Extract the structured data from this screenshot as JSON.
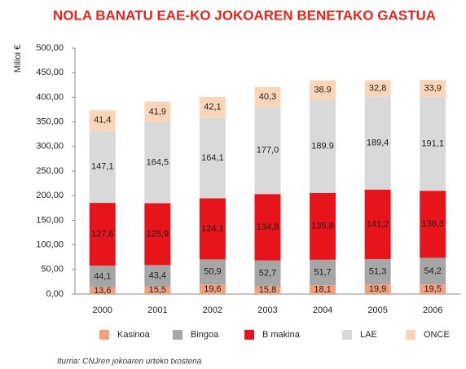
{
  "chart_data": {
    "type": "stacked_bar",
    "title": "NOLA BANATU EAE-KO JOKOAREN BENETAKO GASTUA",
    "y_label": "Milioi €",
    "source": "Iturria: CNJren jokoaren urteko txostena",
    "categories": [
      "2000",
      "2001",
      "2002",
      "2003",
      "2004",
      "2005",
      "2006"
    ],
    "series": [
      {
        "name": "Kasinoa",
        "color": "#f2a07e",
        "values": [
          13.6,
          15.5,
          19.6,
          15.8,
          18.1,
          19.9,
          19.5
        ],
        "value_labels": [
          "13,6",
          "15,5",
          "19,6",
          "15,8",
          "18,1",
          "19,9",
          "19,5"
        ]
      },
      {
        "name": "Bingoa",
        "color": "#a6a6a6",
        "values": [
          44.1,
          43.4,
          50.9,
          52.7,
          51.7,
          51.3,
          54.2
        ],
        "value_labels": [
          "44,1",
          "43,4",
          "50,9",
          "52,7",
          "51,7",
          "51,3",
          "54,2"
        ]
      },
      {
        "name": "B makina",
        "color": "#e8141b",
        "values": [
          127.6,
          125.9,
          124.1,
          134.8,
          135.8,
          141.2,
          136.3
        ],
        "value_labels": [
          "127,6",
          "125,9",
          "124,1",
          "134,8",
          "135,8",
          "141,2",
          "136,3"
        ]
      },
      {
        "name": "LAE",
        "color": "#d9d9d9",
        "values": [
          147.1,
          164.5,
          164.1,
          177.0,
          189.9,
          189.4,
          191.1
        ],
        "value_labels": [
          "147,1",
          "164,5",
          "164,1",
          "177,0",
          "189.9",
          "189,4",
          "191,1"
        ]
      },
      {
        "name": "ONCE",
        "color": "#fcd5b8",
        "values": [
          41.4,
          41.9,
          42.1,
          40.3,
          38.9,
          32.8,
          33.9
        ],
        "value_labels": [
          "41,4",
          "41,9",
          "42,1",
          "40,3",
          "38.9",
          "32,8",
          "33,9"
        ]
      }
    ],
    "ylim": [
      0,
      500
    ],
    "yticks": [
      {
        "value": 0,
        "label": "0,00"
      },
      {
        "value": 50,
        "label": "50,00"
      },
      {
        "value": 100,
        "label": "100,00"
      },
      {
        "value": 150,
        "label": "150,00"
      },
      {
        "value": 200,
        "label": "200,00"
      },
      {
        "value": 250,
        "label": "250,00"
      },
      {
        "value": 300,
        "label": "300,00"
      },
      {
        "value": 350,
        "label": "350,00"
      },
      {
        "value": 400,
        "label": "400,00"
      },
      {
        "value": 450,
        "label": "450,00"
      },
      {
        "value": 500,
        "label": "500,00"
      }
    ],
    "grid": false,
    "legend": "bottom"
  }
}
